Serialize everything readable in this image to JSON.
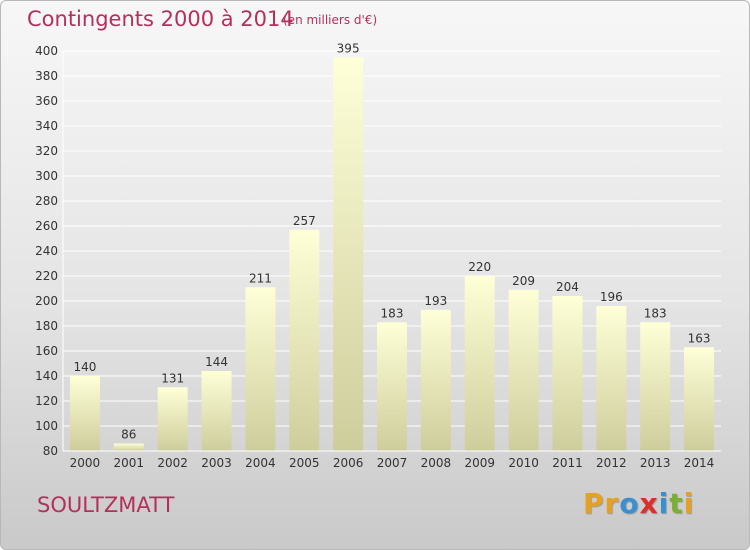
{
  "chart_data": {
    "type": "bar",
    "title": "Contingents 2000 à 2014",
    "subtitle": "(en milliers d'€)",
    "categories": [
      "2000",
      "2001",
      "2002",
      "2003",
      "2004",
      "2005",
      "2006",
      "2007",
      "2008",
      "2009",
      "2010",
      "2011",
      "2012",
      "2013",
      "2014"
    ],
    "values": [
      140,
      86,
      131,
      144,
      211,
      257,
      395,
      183,
      193,
      220,
      209,
      204,
      196,
      183,
      163
    ],
    "data_labels": [
      "140",
      "86",
      "131",
      "144",
      "211",
      "257",
      "395",
      "183",
      "193",
      "220",
      "209",
      "204",
      "196",
      "183",
      "163"
    ],
    "ylim": [
      80,
      400
    ],
    "yticks": [
      80,
      100,
      120,
      140,
      160,
      180,
      200,
      220,
      240,
      260,
      280,
      300,
      320,
      340,
      360,
      380,
      400
    ],
    "ytick_labels": [
      "80",
      "100",
      "120",
      "140",
      "160",
      "180",
      "200",
      "220",
      "240",
      "260",
      "280",
      "300",
      "320",
      "340",
      "360",
      "380",
      "400"
    ],
    "grid": true,
    "legend": "none",
    "bar_color_top": "#ffffd8",
    "bar_color_bottom": "#cdcd9c"
  },
  "footer": {
    "place": "SOULTZMATT",
    "brand": "Proxiti",
    "brand_letters": [
      {
        "char": "P",
        "color": "#e8a020"
      },
      {
        "char": "r",
        "color": "#e8a020"
      },
      {
        "char": "o",
        "color": "#3a8fd0"
      },
      {
        "char": "x",
        "color": "#d8302a"
      },
      {
        "char": "i",
        "color": "#3a8fd0"
      },
      {
        "char": "t",
        "color": "#7ab030"
      },
      {
        "char": "i",
        "color": "#e8a020"
      }
    ]
  },
  "colors": {
    "accent": "#b4305a",
    "grid": "#ffffff",
    "axis_text": "#333333"
  }
}
